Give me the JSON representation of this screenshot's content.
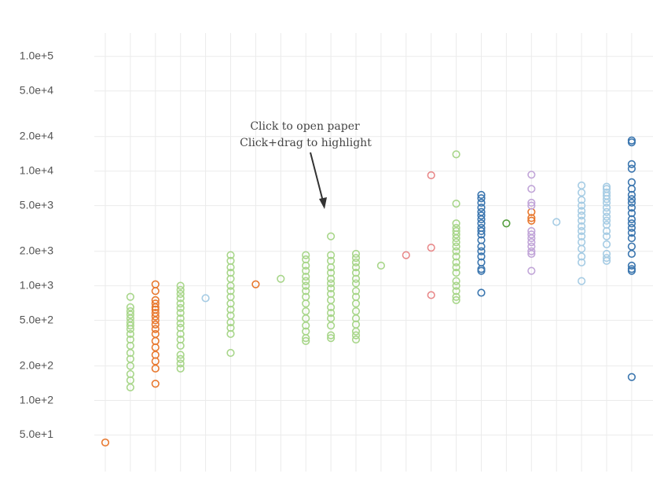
{
  "chart_data": {
    "type": "scatter",
    "log_y": true,
    "grid": true,
    "annotation": [
      "Click to open paper",
      "Click+drag to highlight"
    ],
    "categories": [
      null,
      null,
      null,
      null,
      null,
      null,
      null,
      null,
      null,
      null,
      null,
      null,
      null,
      null,
      null,
      null,
      null,
      null,
      null,
      null,
      null,
      null
    ],
    "ylim": [
      24,
      160000
    ],
    "yticks": [
      {
        "value": 50,
        "label": "5.0e+1"
      },
      {
        "value": 100,
        "label": "1.0e+2"
      },
      {
        "value": 200,
        "label": "2.0e+2"
      },
      {
        "value": 500,
        "label": "5.0e+2"
      },
      {
        "value": 1000,
        "label": "1.0e+3"
      },
      {
        "value": 2000,
        "label": "2.0e+3"
      },
      {
        "value": 5000,
        "label": "5.0e+3"
      },
      {
        "value": 10000,
        "label": "1.0e+4"
      },
      {
        "value": 20000,
        "label": "2.0e+4"
      },
      {
        "value": 50000,
        "label": "5.0e+4"
      },
      {
        "value": 100000,
        "label": "1.0e+5"
      }
    ],
    "series": [
      {
        "color": "#e8782e",
        "x": [
          0,
          2,
          2,
          2,
          2,
          2,
          2,
          2,
          2,
          2,
          2,
          2,
          2,
          2,
          2,
          2,
          2,
          2,
          2,
          6,
          17,
          17,
          17
        ],
        "values": [
          43,
          1030,
          900,
          750,
          700,
          650,
          620,
          580,
          540,
          500,
          460,
          420,
          380,
          330,
          290,
          250,
          220,
          190,
          140,
          1030,
          4400,
          3900,
          3700
        ]
      },
      {
        "color": "#a8d68a",
        "x": [
          1,
          1,
          1,
          1,
          1,
          1,
          1,
          1,
          1,
          1,
          1,
          1,
          1,
          1,
          1,
          1,
          1,
          3,
          3,
          3,
          3,
          3,
          3,
          3,
          3,
          3,
          3,
          3,
          3,
          3,
          3,
          3,
          3,
          3,
          5,
          5,
          5,
          5,
          5,
          5,
          5,
          5,
          5,
          5,
          5,
          5,
          5,
          5,
          5,
          7,
          8,
          8,
          8,
          8,
          8,
          8,
          8,
          8,
          8,
          8,
          8,
          8,
          8,
          8,
          8,
          8,
          9,
          9,
          9,
          9,
          9,
          9,
          9,
          9,
          9,
          9,
          9,
          9,
          9,
          9,
          9,
          9,
          10,
          10,
          10,
          10,
          10,
          10,
          10,
          10,
          10,
          10,
          10,
          10,
          10,
          10,
          10,
          10,
          11,
          14,
          14,
          14,
          14,
          14,
          14,
          14,
          14,
          14,
          14,
          14,
          14,
          14,
          14,
          14,
          14,
          14,
          14,
          14
        ],
        "values": [
          800,
          650,
          600,
          560,
          520,
          480,
          450,
          420,
          380,
          340,
          300,
          260,
          230,
          200,
          170,
          150,
          130,
          1000,
          920,
          850,
          780,
          700,
          640,
          580,
          520,
          470,
          430,
          380,
          340,
          300,
          250,
          230,
          210,
          190,
          1850,
          1650,
          1450,
          1300,
          1150,
          1000,
          900,
          800,
          700,
          620,
          550,
          480,
          430,
          380,
          260,
          1150,
          1850,
          1700,
          1500,
          1350,
          1200,
          1100,
          1000,
          900,
          800,
          700,
          600,
          520,
          450,
          400,
          350,
          330,
          2700,
          1850,
          1650,
          1450,
          1300,
          1150,
          1050,
          950,
          850,
          750,
          650,
          580,
          520,
          450,
          370,
          350,
          1900,
          1750,
          1600,
          1450,
          1300,
          1150,
          1050,
          900,
          800,
          700,
          600,
          520,
          460,
          400,
          370,
          340,
          1500,
          14000,
          5200,
          3500,
          3200,
          3000,
          2800,
          2600,
          2400,
          2200,
          2000,
          1800,
          1600,
          1450,
          1300,
          1100,
          1000,
          900,
          800,
          750
        ]
      },
      {
        "color": "#a6cce4",
        "x": [
          4,
          18,
          19,
          19,
          19,
          19,
          19,
          19,
          19,
          19,
          19,
          19,
          19,
          19,
          19,
          19,
          19,
          20,
          20,
          20,
          20,
          20,
          20,
          20,
          20,
          20,
          20,
          20,
          20,
          20,
          20,
          20,
          20,
          20
        ],
        "values": [
          780,
          3600,
          7500,
          6500,
          5600,
          5000,
          4500,
          4100,
          3700,
          3300,
          3000,
          2700,
          2400,
          2100,
          1800,
          1600,
          1100,
          7300,
          7000,
          6500,
          6100,
          5700,
          5300,
          4800,
          4400,
          4000,
          3700,
          3400,
          3000,
          2700,
          2300,
          1900,
          1750,
          1650
        ]
      },
      {
        "color": "#3b76af",
        "x": [
          15,
          15,
          15,
          15,
          15,
          15,
          15,
          15,
          15,
          15,
          15,
          15,
          15,
          15,
          15,
          15,
          15,
          15,
          15,
          21,
          21,
          21,
          21,
          21,
          21,
          21,
          21,
          21,
          21,
          21,
          21,
          21,
          21,
          21,
          21,
          21,
          21,
          21,
          21,
          21,
          21
        ],
        "values": [
          6200,
          5800,
          5300,
          4800,
          4400,
          4100,
          3800,
          3500,
          3200,
          3000,
          2800,
          2500,
          2200,
          2000,
          1800,
          1600,
          1400,
          1350,
          870,
          18500,
          17800,
          11500,
          10500,
          8000,
          7000,
          6200,
          5700,
          5300,
          4800,
          4300,
          3800,
          3500,
          3200,
          2900,
          2600,
          2200,
          1900,
          1500,
          1400,
          1350,
          160
        ]
      },
      {
        "color": "#559e3e",
        "x": [
          16
        ],
        "values": [
          3500
        ]
      },
      {
        "color": "#e8898a",
        "x": [
          12,
          13,
          13,
          13
        ],
        "values": [
          1850,
          9200,
          2150,
          830
        ]
      },
      {
        "color": "#c1a5d8",
        "x": [
          17,
          17,
          17,
          17,
          17,
          17,
          17,
          17,
          17,
          17,
          17,
          17
        ],
        "values": [
          9300,
          7000,
          5300,
          5000,
          3000,
          2800,
          2600,
          2400,
          2200,
          2000,
          1900,
          1350
        ]
      }
    ]
  }
}
